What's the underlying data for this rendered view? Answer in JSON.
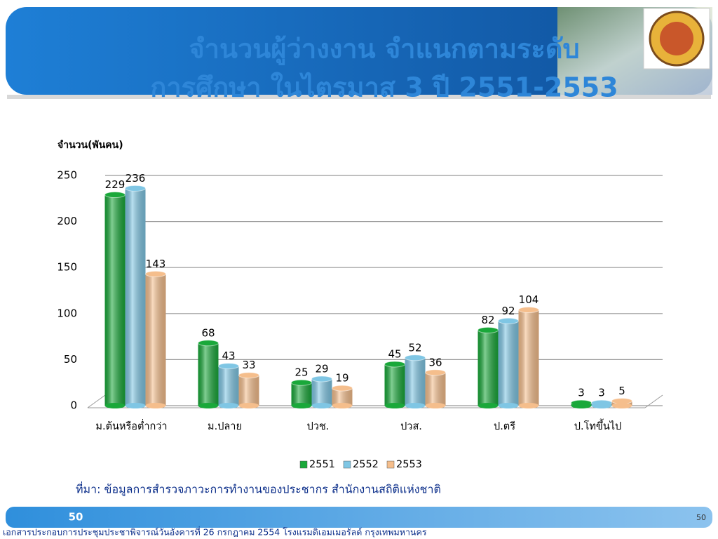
{
  "slide": {
    "title_lines": [
      "จำนวนผู้ว่างงาน จำแนกตามระดับ",
      "การศึกษา ในไตรมาส 3 ปี 2551-2553"
    ],
    "source": "ที่มา: ข้อมูลการสำรวจภาวะการทำงานของประชากร สำนักงานสถิติแห่งชาติ",
    "slide_number": "50",
    "page_number": "50",
    "footer": "เอกสารประกอบการประชุมประชาพิจารณ์วันอังคารที่ 26 กรกฎาคม 2554 โรงแรมดิเอมเมอรัลด์ กรุงเทพมหานคร"
  },
  "chart_data": {
    "type": "bar",
    "y_label": "จำนวน(พันคน)",
    "categories": [
      "ม.ต้นหรือต่ำกว่า",
      "ม.ปลาย",
      "ปวช.",
      "ปวส.",
      "ป.ตรี",
      "ป.โทขึ้นไป"
    ],
    "series": [
      {
        "name": "2551",
        "color": "#1aa83a",
        "values": [
          229,
          68,
          25,
          45,
          82,
          3
        ]
      },
      {
        "name": "2552",
        "color": "#7fc6e4",
        "values": [
          236,
          43,
          29,
          52,
          92,
          3
        ]
      },
      {
        "name": "2553",
        "color": "#f5be8c",
        "values": [
          143,
          33,
          19,
          36,
          104,
          5
        ]
      }
    ],
    "ylim": [
      0,
      250
    ],
    "yticks": [
      0,
      50,
      100,
      150,
      200,
      250
    ],
    "grid": true,
    "legend": "bottom"
  }
}
